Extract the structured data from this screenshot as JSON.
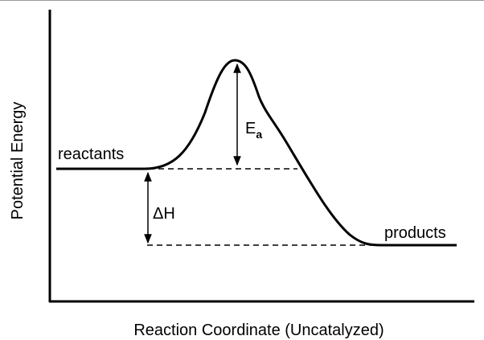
{
  "labels": {
    "y_axis": "Potential Energy",
    "x_axis": "Reaction Coordinate (Uncatalyzed)",
    "reactants": "reactants",
    "products": "products",
    "activation_energy": {
      "symbol": "E",
      "subscript": "a"
    },
    "enthalpy": "ΔH"
  }
}
